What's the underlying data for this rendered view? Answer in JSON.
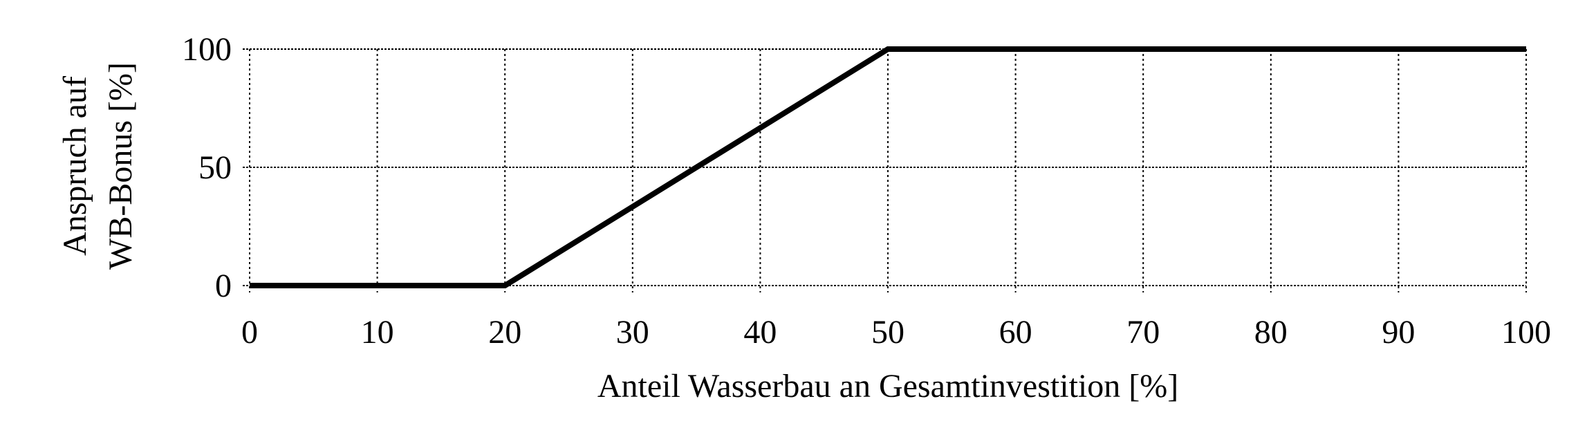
{
  "chart_data": {
    "type": "line",
    "title": "",
    "xlabel": "Anteil Wasserbau an Gesamtinvestition [%]",
    "ylabel_lines": [
      "Anspruch auf",
      "WB-Bonus [%]"
    ],
    "xlim": [
      0,
      100
    ],
    "ylim": [
      0,
      100
    ],
    "xticks": [
      0,
      10,
      20,
      30,
      40,
      50,
      60,
      70,
      80,
      90,
      100
    ],
    "yticks": [
      0,
      50,
      100
    ],
    "grid": true,
    "grid_style": "dotted",
    "line_color": "#000000",
    "series": [
      {
        "x": [
          0,
          20,
          50,
          100
        ],
        "y": [
          0,
          0,
          100,
          100
        ]
      }
    ]
  }
}
